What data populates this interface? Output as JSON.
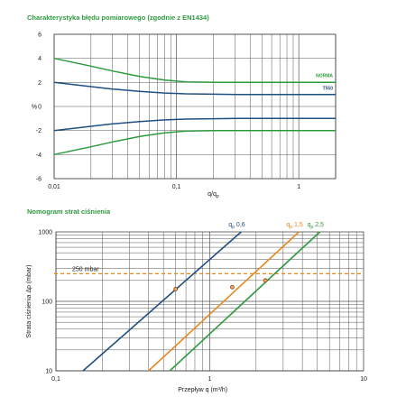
{
  "chart_data": [
    {
      "type": "line",
      "title": "Charakterystyka błędu pomiarowego (zgodnie z EN1434)",
      "xlabel": "q/qp",
      "ylabel": "%",
      "xscale": "log",
      "xlim": [
        0.01,
        2
      ],
      "ylim": [
        -6,
        6
      ],
      "xticks": [
        "0,01",
        "0,1",
        "1"
      ],
      "yticks": [
        "6",
        "4",
        "2",
        "0",
        "-2",
        "-4",
        "-6"
      ],
      "grid": true,
      "colors": {
        "NORMA": "#2e9a3e",
        "T550": "#1f4f80"
      },
      "series": [
        {
          "name": "NORMA",
          "x": [
            0.01,
            0.02,
            0.03,
            0.05,
            0.08,
            0.12,
            0.2,
            0.3,
            0.5,
            1,
            2
          ],
          "y": [
            4,
            3.35,
            2.95,
            2.5,
            2.2,
            2.05,
            2,
            2,
            2,
            2,
            2
          ]
        },
        {
          "name": "T550",
          "x": [
            0.01,
            0.02,
            0.03,
            0.05,
            0.08,
            0.12,
            0.2,
            0.3,
            0.5,
            1,
            2
          ],
          "y": [
            2,
            1.65,
            1.45,
            1.25,
            1.12,
            1.05,
            1.02,
            1,
            1,
            1,
            1
          ]
        },
        {
          "name": "",
          "x": [
            0.01,
            0.02,
            0.03,
            0.05,
            0.08,
            0.12,
            0.2,
            0.3,
            0.5,
            1,
            2
          ],
          "y": [
            -2,
            -1.65,
            -1.45,
            -1.25,
            -1.12,
            -1.05,
            -1.02,
            -1,
            -1,
            -1,
            -1
          ]
        },
        {
          "name": "",
          "x": [
            0.01,
            0.02,
            0.03,
            0.05,
            0.08,
            0.12,
            0.2,
            0.3,
            0.5,
            1,
            2
          ],
          "y": [
            -4,
            -3.35,
            -2.95,
            -2.5,
            -2.2,
            -2.05,
            -2,
            -2,
            -2,
            -2,
            -2
          ]
        }
      ]
    },
    {
      "type": "line",
      "title": "Nomogram strat ciśnienia",
      "xlabel": "Przepływ  q (m³/h)",
      "ylabel": "Strata ciśnienia  Δp (mbar)",
      "xscale": "log",
      "yscale": "log",
      "xlim": [
        0.1,
        10
      ],
      "ylim": [
        10,
        1000
      ],
      "xticks": [
        "0,1",
        "1",
        "10"
      ],
      "yticks": [
        "1000",
        "100",
        "10"
      ],
      "grid": true,
      "reference_line": {
        "label": "250 mbar",
        "y": 250,
        "color": "#e8871e"
      },
      "series": [
        {
          "name": "qp 0,6",
          "qp_value": "0,6",
          "color": "#1f4f80",
          "x": [
            0.15,
            1.6
          ],
          "y": [
            10,
            1000
          ],
          "marker": {
            "x": 0.6,
            "y": 150
          }
        },
        {
          "name": "qp 1,5",
          "qp_value": "1,5",
          "color": "#e8871e",
          "x": [
            0.4,
            3.8
          ],
          "y": [
            10,
            1000
          ],
          "marker": {
            "x": 1.4,
            "y": 160
          }
        },
        {
          "name": "qp 2,5",
          "qp_value": "2,5",
          "color": "#2e9a3e",
          "x": [
            0.55,
            5.2
          ],
          "y": [
            10,
            1000
          ],
          "marker": {
            "x": 2.3,
            "y": 200
          }
        }
      ]
    }
  ]
}
